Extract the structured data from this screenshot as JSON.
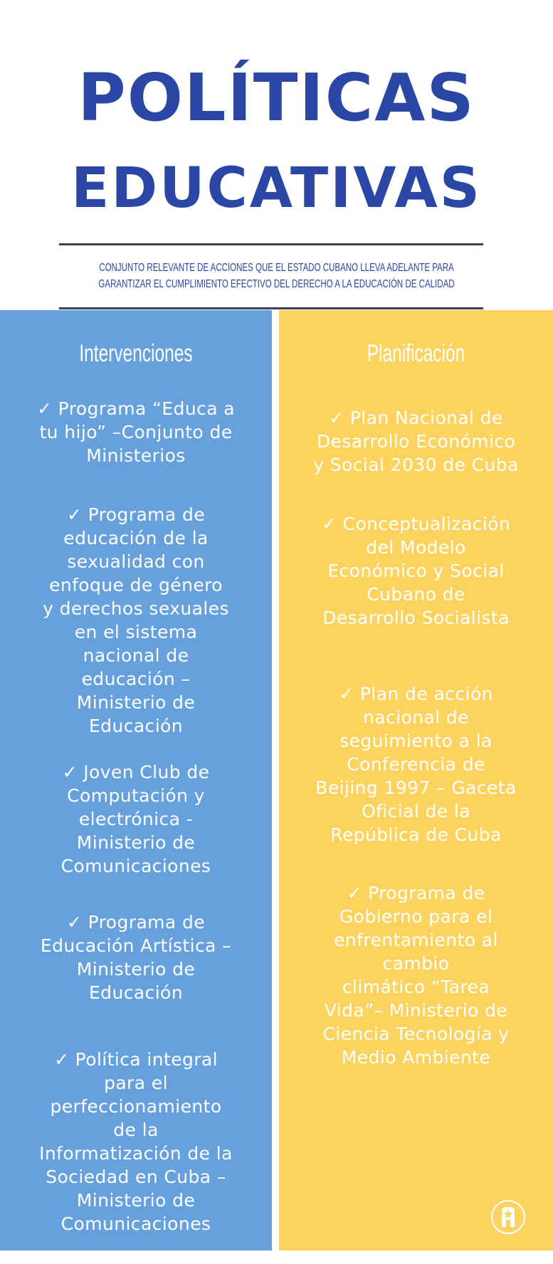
{
  "header": {
    "title_line1": "POLÍTICAS",
    "title_line2": "EDUCATIVAS",
    "subtitle_line1": "CONJUNTO  RELEVANTE  DE  ACCIONES  QUE  EL  ESTADO  CUBANO LLEVA ADELANTE PARA",
    "subtitle_line2": "GARANTIZAR EL CUMPLIMIENTO EFECTIVO DEL DERECHO A LA EDUCACIÓN DE CALIDAD"
  },
  "colors": {
    "title": "#2a47a6",
    "left_column": "#66a1de",
    "right_column": "#fdd360",
    "rule": "#3b4152"
  },
  "left": {
    "heading": "Intervenciones",
    "items": [
      "✓ Programa “Educa a\ntu hijo” –Conjunto de\nMinisterios",
      "✓ Programa de\neducación de la\nsexualidad con\nenfoque de género\ny derechos sexuales\nen el sistema\nnacional de\neducación –\nMinisterio de\nEducación",
      "✓ Joven Club de\nComputación y\nelectrónica -\nMinisterio de\nComunicaciones",
      "✓ Programa de\nEducación Artística –\nMinisterio de\nEducación",
      "✓ Política integral\npara el\nperfeccionamiento\nde la\nInformatización de la\nSociedad en Cuba –\nMinisterio de\nComunicaciones"
    ]
  },
  "right": {
    "heading": "Planificación",
    "items": [
      "✓ Plan Nacional de\nDesarrollo Económico\ny Social 2030 de Cuba",
      "✓ Conceptualización\ndel Modelo\nEconómico y Social\nCubano de\nDesarrollo Socialista",
      "✓ Plan de acción\nnacional de\nseguimiento a la\nConferencia de\nBeijing 1997 – Gaceta\nOficial de la\nRepública de Cuba",
      "✓ Programa de\nGobierno para el\nenfrentamiento al\ncambio\nclimático “Tarea\nVida”– Ministerio de\nCiencia Tecnología y\nMedio Ambiente"
    ]
  },
  "logo": {
    "icon": "star-emblem-logo"
  }
}
